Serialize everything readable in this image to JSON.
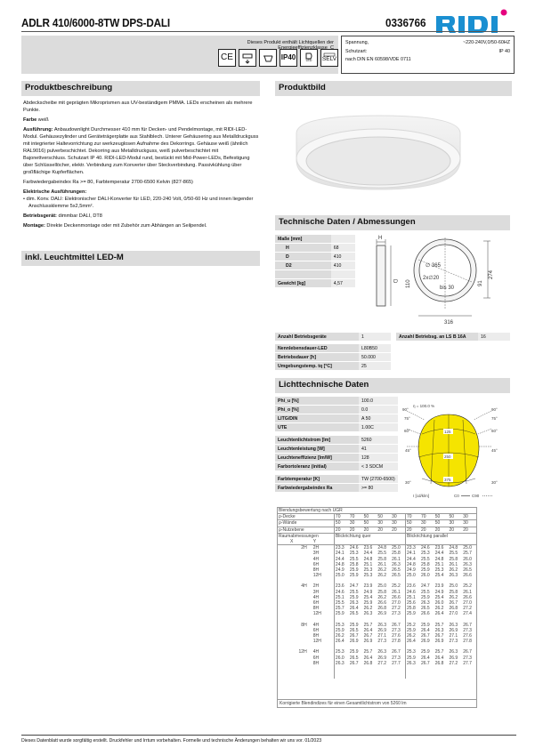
{
  "header": {
    "title": "ADLR 410/6000-8TW DPS-DALI",
    "article_number": "0336766",
    "logo": "RIDI",
    "brand_color": "#1a8fd1",
    "logo_dot_color": "#e5007e"
  },
  "energy": {
    "text": "Dieses Produkt enthält Lichtquellen der Energieeffizienzklasse",
    "class": "C"
  },
  "cert_icons": [
    {
      "name": "ce-mark-icon",
      "label": "CE"
    },
    {
      "name": "mounting-icon",
      "label": ""
    },
    {
      "name": "ceiling-mount-icon",
      "label": ""
    },
    {
      "name": "ip-rating-icon",
      "label": "IP40"
    },
    {
      "name": "led-icon",
      "label": "LED"
    },
    {
      "name": "selv-icon",
      "label": "SELV"
    }
  ],
  "spec": {
    "voltage_label": "Spannung,",
    "voltage_value": "~220-240V,0/50-60HZ",
    "protection_label": "Schutzart:",
    "protection_value": "IP 40",
    "standard": "nach DIN EN 60598/VDE 0711"
  },
  "sections": {
    "description": "Produktbeschreibung",
    "image": "Produktbild",
    "technical": "Technische Daten / Abmessungen",
    "lighting": "Lichttechnische Daten",
    "included": "inkl. Leuchtmittel LED-M"
  },
  "description": {
    "intro": "Abdeckscheibe mit geprägten Mikroprismen aus UV-beständigem PMMA. LEDs erscheinen als mehrere Punkte.",
    "color_label": "Farbe",
    "color_value": "weiß",
    "design_label": "Ausführung:",
    "design_value": "Anbaudownlight Durchmesser 410 mm für Decken- und Pendelmontage, mit RIDI-LED-Modul. Gehäusezylinder und Geräteträgerplatte aus Stahlblech. Unterer Gehäusering aus Metalldruckguss mit integrierter Haltevorrichtung zur werkzeuglosen Aufnahme des Dekorrings. Gehäuse weiß (ähnlich RAL9016) pulverbeschichtet. Dekorring aus Metalldruckguss, weiß pulverbeschichtet mit Bajonettverschluss. Schutzart IP 40. RIDI-LED-Modul rund, bestückt mit Mid-Power-LEDs, Befestigung über Schlüssellöcher, elektr. Verbindung zum Konverter über Steckverbindung. Passivkühlung über großflächige Kupferflächen.",
    "color_rendering": "Farbwiedergabeindex Ra >= 80, Farbtemperatur 2700-6500 Kelvin (827-865)",
    "electrical_label": "Elektrische Ausführungen:",
    "electrical_item": "dim. Konv. DALI: Elektronischer DALI-Konverter für LED, 220-240 Volt, 0/50-60 Hz und innen liegender Anschlussklemme 5x2,5mm².",
    "gear_label": "Betriebsgerät:",
    "gear_value": "dimmbar DALI, DT8",
    "mounting_label": "Montage:",
    "mounting_value": "Direkte Deckenmontage oder mit Zubehör zum Abhängen an Seilpendel."
  },
  "dimensions": {
    "header": "Maße [mm]",
    "rows": [
      {
        "k": "H",
        "v": "68"
      },
      {
        "k": "D",
        "v": "410"
      },
      {
        "k": "D2",
        "v": "410"
      },
      {
        "k": "",
        "v": ""
      }
    ],
    "weight_label": "Gewicht [kg]",
    "weight_value": "4,57"
  },
  "drawing": {
    "h": "H",
    "d": "D",
    "dia": "∅ 365",
    "holes": "2x∅20",
    "slot": "bis 30",
    "w316": "316",
    "h110": "110",
    "h91": "91",
    "h274": "274"
  },
  "operating": {
    "count_label": "Anzahl Betriebsgeräte",
    "count_value": "1",
    "breaker_label": "Anzahl Betriebsg. an LS B 16A",
    "breaker_value": "16",
    "rows": [
      {
        "k": "Nennlebensdauer-LED",
        "v": "L80B50"
      },
      {
        "k": "Betriebsdauer [h]",
        "v": "50.000"
      },
      {
        "k": "Umgebungstemp. tq [°C]",
        "v": "25"
      }
    ]
  },
  "lighting": {
    "group1": [
      {
        "k": "Phi_u [%]",
        "v": "100.0"
      },
      {
        "k": "Phi_o [%]",
        "v": "0.0"
      },
      {
        "k": "LITG/DIN",
        "v": "A 50"
      },
      {
        "k": "UTE",
        "v": "1.00C"
      }
    ],
    "group2": [
      {
        "k": "Leuchtenlichtstrom [lm]",
        "v": "5260"
      },
      {
        "k": "Leuchtenleistung [W]",
        "v": "41"
      },
      {
        "k": "Leuchteneffizienz [lm/W]",
        "v": "128"
      },
      {
        "k": "Farbortoleranz (initial)",
        "v": "< 3 SDCM"
      }
    ],
    "group3": [
      {
        "k": "Farbtemperatur [K]",
        "v": "TW (2700-6500)"
      },
      {
        "k": "Farbwiedergabeindex Ra",
        "v": ">= 80"
      }
    ]
  },
  "polar": {
    "eta": "η = 100.0 %",
    "angles": [
      "90°",
      "75°",
      "60°",
      "45°",
      "30°"
    ],
    "rings": [
      "125",
      "250",
      "375"
    ],
    "unit": "I [cd/klm]",
    "c0": "C0",
    "c90": "C90",
    "fill_color": "#f5e400"
  },
  "ugr": {
    "title": "Blendungsbewertung nach UGR",
    "rho_ceiling_label": "ρ-Decke",
    "rho_ceiling": [
      "70",
      "70",
      "50",
      "50",
      "30",
      "70",
      "70",
      "50",
      "50",
      "30"
    ],
    "rho_wall_label": "ρ-Wände",
    "rho_wall": [
      "50",
      "30",
      "50",
      "30",
      "30",
      "50",
      "30",
      "50",
      "30",
      "30"
    ],
    "rho_floor_label": "ρ-Nutzebene",
    "rho_floor": [
      "20",
      "20",
      "20",
      "20",
      "20",
      "20",
      "20",
      "20",
      "20",
      "20"
    ],
    "room_label": "Raumabmessungen",
    "x_label": "X",
    "y_label": "Y",
    "dir_cross": "Blickrichtung quer",
    "dir_parallel": "Blickrichtung parallel",
    "groups": [
      {
        "x": "2H",
        "rows": [
          {
            "y": "2H",
            "v": [
              "23.3",
              "24.6",
              "23.6",
              "24.8",
              "25.0",
              "23.3",
              "24.6",
              "23.6",
              "24.8",
              "25.0"
            ]
          },
          {
            "y": "3H",
            "v": [
              "24.1",
              "25.3",
              "24.4",
              "25.5",
              "25.8",
              "24.1",
              "25.3",
              "24.4",
              "25.5",
              "25.7"
            ]
          },
          {
            "y": "4H",
            "v": [
              "24.4",
              "25.5",
              "24.8",
              "25.8",
              "26.1",
              "24.4",
              "25.5",
              "24.8",
              "25.8",
              "26.0"
            ]
          },
          {
            "y": "6H",
            "v": [
              "24.8",
              "25.8",
              "25.1",
              "26.1",
              "26.3",
              "24.8",
              "25.8",
              "25.1",
              "26.1",
              "26.3"
            ]
          },
          {
            "y": "8H",
            "v": [
              "24.9",
              "25.9",
              "25.3",
              "26.2",
              "26.5",
              "24.9",
              "25.9",
              "25.3",
              "26.2",
              "26.5"
            ]
          },
          {
            "y": "12H",
            "v": [
              "25.0",
              "25.9",
              "25.3",
              "26.2",
              "26.5",
              "25.0",
              "26.0",
              "25.4",
              "26.3",
              "26.6"
            ]
          }
        ]
      },
      {
        "x": "4H",
        "rows": [
          {
            "y": "2H",
            "v": [
              "23.6",
              "24.7",
              "23.9",
              "25.0",
              "25.2",
              "23.6",
              "24.7",
              "23.9",
              "25.0",
              "25.2"
            ]
          },
          {
            "y": "3H",
            "v": [
              "24.6",
              "25.5",
              "24.9",
              "25.8",
              "26.1",
              "24.6",
              "25.5",
              "24.9",
              "25.8",
              "26.1"
            ]
          },
          {
            "y": "4H",
            "v": [
              "25.1",
              "25.9",
              "25.4",
              "26.2",
              "26.6",
              "25.1",
              "25.9",
              "25.4",
              "26.2",
              "26.6"
            ]
          },
          {
            "y": "6H",
            "v": [
              "25.5",
              "26.3",
              "25.9",
              "26.6",
              "27.0",
              "25.6",
              "26.3",
              "26.0",
              "26.7",
              "27.0"
            ]
          },
          {
            "y": "8H",
            "v": [
              "25.7",
              "26.4",
              "26.2",
              "26.8",
              "27.2",
              "25.8",
              "26.5",
              "26.2",
              "26.8",
              "27.2"
            ]
          },
          {
            "y": "12H",
            "v": [
              "25.9",
              "26.5",
              "26.3",
              "26.9",
              "27.3",
              "25.9",
              "26.6",
              "26.4",
              "27.0",
              "27.4"
            ]
          }
        ]
      },
      {
        "x": "8H",
        "rows": [
          {
            "y": "4H",
            "v": [
              "25.3",
              "25.9",
              "25.7",
              "26.3",
              "26.7",
              "25.2",
              "25.9",
              "25.7",
              "26.3",
              "26.7"
            ]
          },
          {
            "y": "6H",
            "v": [
              "25.9",
              "26.5",
              "26.4",
              "26.9",
              "27.3",
              "25.9",
              "26.4",
              "26.3",
              "26.9",
              "27.3"
            ]
          },
          {
            "y": "8H",
            "v": [
              "26.2",
              "26.7",
              "26.7",
              "27.1",
              "27.6",
              "26.2",
              "26.7",
              "26.7",
              "27.1",
              "27.6"
            ]
          },
          {
            "y": "12H",
            "v": [
              "26.4",
              "26.9",
              "26.9",
              "27.3",
              "27.8",
              "26.4",
              "26.9",
              "26.9",
              "27.3",
              "27.8"
            ]
          }
        ]
      },
      {
        "x": "12H",
        "rows": [
          {
            "y": "4H",
            "v": [
              "25.3",
              "25.9",
              "25.7",
              "26.3",
              "26.7",
              "25.3",
              "25.9",
              "25.7",
              "26.3",
              "26.7"
            ]
          },
          {
            "y": "6H",
            "v": [
              "26.0",
              "26.5",
              "26.4",
              "26.9",
              "27.3",
              "25.9",
              "26.4",
              "26.4",
              "26.9",
              "27.3"
            ]
          },
          {
            "y": "8H",
            "v": [
              "26.3",
              "26.7",
              "26.8",
              "27.2",
              "27.7",
              "26.3",
              "26.7",
              "26.8",
              "27.2",
              "27.7"
            ]
          }
        ]
      }
    ],
    "footer": "Korrigierte Blendindizes für einen Gesamtlichtstrom von  5260 lm"
  },
  "footer": "Dieses Datenblatt wurde sorgfältig erstellt. Druckfehler und Irrtum vorbehalten. Formelle und technische Änderungen behalten wir uns vor. 01/2023"
}
